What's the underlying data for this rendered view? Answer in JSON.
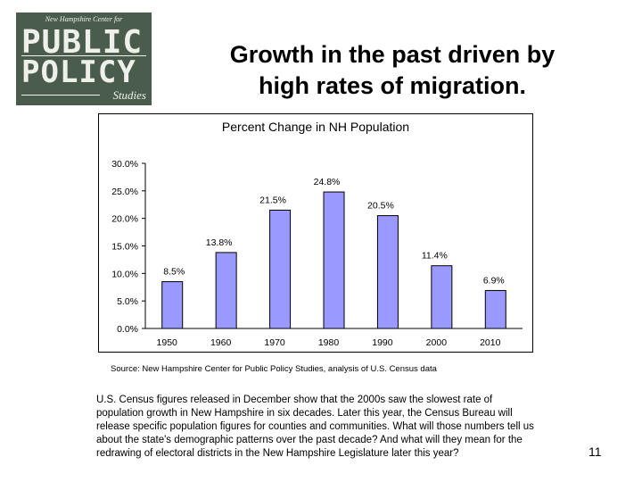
{
  "logo": {
    "top_text": "New Hampshire Center for",
    "line1": "PUBLIC",
    "line2": "POLICY",
    "line3": "Studies"
  },
  "slide": {
    "title_line1": "Growth in the past driven by",
    "title_line2": "high rates of migration.",
    "source": "Source: New Hampshire Center for Public Policy Studies, analysis of U.S. Census data",
    "body": "U.S. Census figures released in December show that the 2000s saw the slowest rate of population growth in New Hampshire in six decades. Later this year, the Census Bureau will release specific population figures for counties and communities. What will those numbers tell us about the state's demographic patterns over the past decade? And what will they mean for the redrawing of electoral districts in the New Hampshire Legislature later this year?",
    "page_number": "11"
  },
  "chart_data": {
    "type": "bar",
    "title": "Percent Change in NH Population",
    "categories": [
      "1950",
      "1960",
      "1970",
      "1980",
      "1990",
      "2000",
      "2010"
    ],
    "values": [
      8.5,
      13.8,
      21.5,
      24.8,
      20.5,
      11.4,
      6.9
    ],
    "data_labels": [
      "8.5%",
      "13.8%",
      "21.5%",
      "24.8%",
      "20.5%",
      "11.4%",
      "6.9%"
    ],
    "y_ticks": [
      "0.0%",
      "5.0%",
      "10.0%",
      "15.0%",
      "20.0%",
      "25.0%",
      "30.0%"
    ],
    "ylim": [
      0,
      30
    ],
    "grid": false,
    "bar_color": "#9999ff"
  }
}
